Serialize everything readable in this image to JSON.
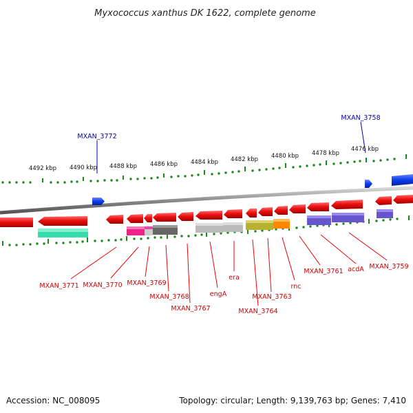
{
  "title": "Myxococcus xanthus DK 1622, complete genome",
  "footer": {
    "accession": "Accession: NC_008095",
    "topology": "Topology: circular; Length: 9,139,763 bp; Genes: 7,410"
  },
  "scale_labels": [
    "4492 kbp",
    "4490 kbp",
    "4488 kbp",
    "4486 kbp",
    "4484 kbp",
    "4482 kbp",
    "4480 kbp",
    "4478 kbp",
    "4476 kbp"
  ],
  "gene_labels_blue": [
    "MXAN_3772",
    "MXAN_3758"
  ],
  "gene_labels_red": [
    "MXAN_3771",
    "MXAN_3770",
    "MXAN_3769",
    "MXAN_3768",
    "MXAN_3767",
    "engA",
    "era",
    "MXAN_3764",
    "MXAN_3763",
    "rnc",
    "MXAN_3761",
    "acdA",
    "MXAN_3759"
  ],
  "colors": {
    "backbone": "#8c8c8c",
    "forward_gene": "#1040ee",
    "reverse_gene": "#ee1111",
    "tick": "#1a8a1a",
    "label_red": "#cc0000",
    "label_blue": "#0000aa"
  }
}
